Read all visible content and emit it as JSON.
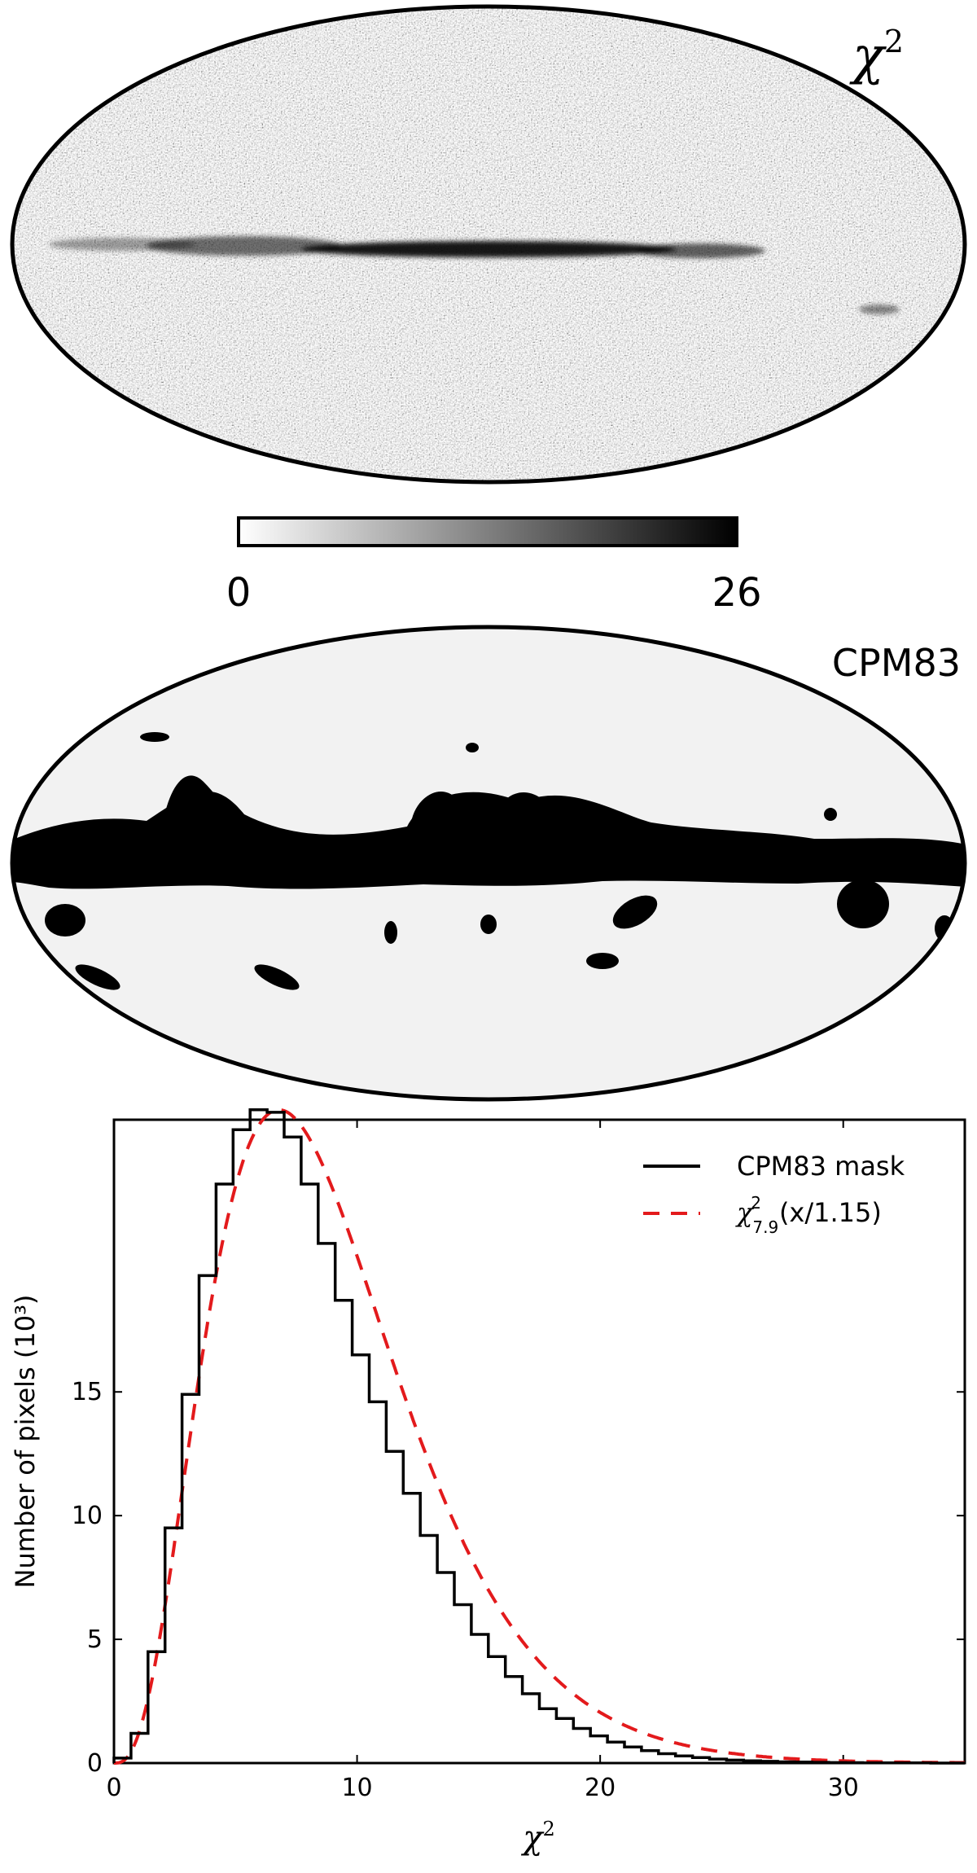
{
  "panels": {
    "chi_map": {
      "label_symbol": "χ",
      "label_sup": "2",
      "colorbar": {
        "min_label": "0",
        "max_label": "26",
        "colors": [
          "#ffffff",
          "#000000"
        ]
      }
    },
    "mask_map": {
      "label": "CPM83",
      "mask_color": "#000000",
      "sky_color": "#f2f2f2"
    }
  },
  "chart_data": {
    "type": "line",
    "xlabel_symbol": "χ",
    "xlabel_sup": "2",
    "ylabel": "Number of pixels (10³)",
    "xlim": [
      0,
      35
    ],
    "ylim": [
      0,
      26
    ],
    "xticks": [
      0,
      10,
      20,
      30
    ],
    "yticks": [
      0,
      5,
      10,
      15
    ],
    "grid": false,
    "legend_position": "top-right",
    "series": [
      {
        "name": "CPM83 mask",
        "style": "steps",
        "color": "#000000",
        "bin_width": 0.7,
        "x": [
          0,
          0.7,
          1.4,
          2.1,
          2.8,
          3.5,
          4.2,
          4.9,
          5.6,
          6.3,
          7.0,
          7.7,
          8.4,
          9.1,
          9.8,
          10.5,
          11.2,
          11.9,
          12.6,
          13.3,
          14.0,
          14.7,
          15.4,
          16.1,
          16.8,
          17.5,
          18.2,
          18.9,
          19.6,
          20.3,
          21.0,
          21.7,
          22.4,
          23.1,
          23.8,
          24.5,
          25.2,
          25.9,
          26.6,
          27.3,
          28.0,
          28.7,
          29.4,
          30.1,
          30.8,
          31.5,
          32.2,
          32.9,
          33.6,
          34.3
        ],
        "values": [
          0.2,
          1.2,
          4.5,
          9.5,
          14.9,
          19.7,
          23.4,
          25.6,
          26.4,
          26.3,
          25.3,
          23.4,
          21.0,
          18.7,
          16.5,
          14.6,
          12.6,
          10.9,
          9.2,
          7.7,
          6.4,
          5.2,
          4.3,
          3.5,
          2.8,
          2.2,
          1.8,
          1.4,
          1.1,
          0.85,
          0.65,
          0.5,
          0.38,
          0.29,
          0.22,
          0.16,
          0.12,
          0.09,
          0.07,
          0.05,
          0.04,
          0.03,
          0.02,
          0.015,
          0.01,
          0.01,
          0.005,
          0.005,
          0.0,
          0.0
        ]
      },
      {
        "name_symbol": "χ",
        "name_sub": "7.9",
        "name_sup": "2",
        "name_rest": "(x/1.15)",
        "style": "dashed",
        "color": "#e31a1c",
        "dof": 7.9,
        "scale": 1.15,
        "peak_value": 26.4
      }
    ]
  }
}
